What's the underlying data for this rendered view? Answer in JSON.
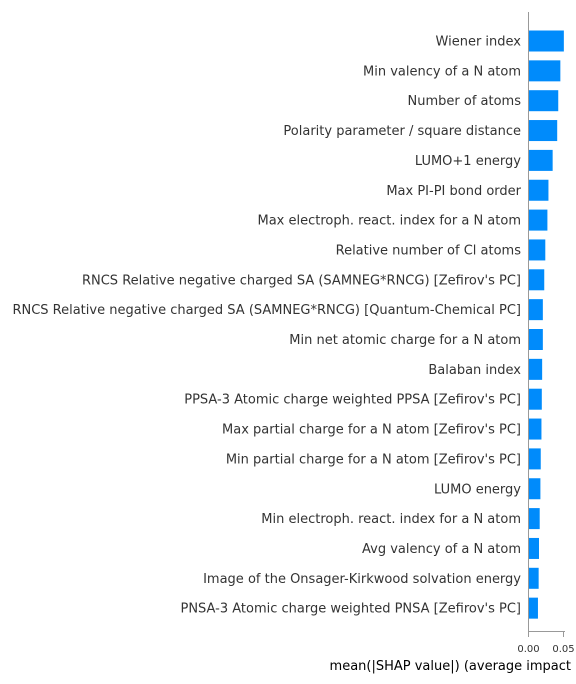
{
  "chart_data": {
    "type": "bar",
    "orientation": "horizontal",
    "categories": [
      "Wiener index",
      "Min valency of a N atom",
      "Number of atoms",
      "Polarity parameter / square distance",
      "LUMO+1 energy",
      "Max PI-PI bond order",
      "Max electroph. react. index for a N atom",
      "Relative number of Cl atoms",
      "RNCS Relative negative charged SA (SAMNEG*RNCG) [Zefirov's PC]",
      "RNCS Relative negative charged SA (SAMNEG*RNCG) [Quantum-Chemical PC]",
      "Min net atomic charge for a N atom",
      "Balaban index",
      "PPSA-3 Atomic charge weighted PPSA [Zefirov's PC]",
      "Max partial charge for a N  atom [Zefirov's PC]",
      "Min partial charge for a N  atom [Zefirov's PC]",
      "LUMO energy",
      "Min electroph. react. index for a N atom",
      "Avg valency of a N atom",
      "Image of the Onsager-Kirkwood solvation energy",
      "PNSA-3 Atomic charge weighted PNSA [Zefirov's PC]"
    ],
    "values": [
      0.0505,
      0.0455,
      0.0425,
      0.041,
      0.0345,
      0.0285,
      0.027,
      0.024,
      0.0225,
      0.0205,
      0.0205,
      0.0195,
      0.019,
      0.0185,
      0.0175,
      0.017,
      0.016,
      0.015,
      0.0145,
      0.0135
    ],
    "xticks": [
      0.0,
      0.05
    ],
    "xtick_labels": [
      "0.00",
      "0.05"
    ],
    "xlim": [
      0,
      0.052
    ],
    "xlabel": "mean(|SHAP value|) (average impact",
    "bar_color": "#008bfb",
    "grid": false
  }
}
